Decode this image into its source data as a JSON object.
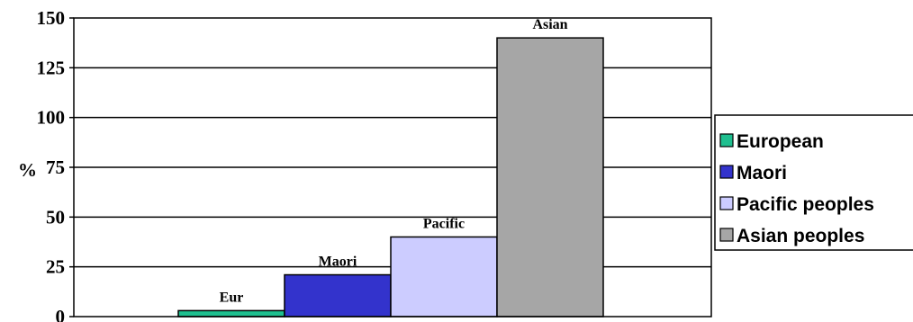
{
  "chart_data": {
    "type": "bar",
    "ylabel": "%",
    "ylim": [
      0,
      150
    ],
    "yticks": [
      0,
      25,
      50,
      75,
      100,
      125,
      150
    ],
    "grid": true,
    "legend_position": "right",
    "series": [
      {
        "name": "European",
        "value": 3,
        "data_label": "Eur",
        "color": "#1fbf8f"
      },
      {
        "name": "Maori",
        "value": 21,
        "data_label": "Maori",
        "color": "#3333cc"
      },
      {
        "name": "Pacific peoples",
        "value": 40,
        "data_label": "Pacific",
        "color": "#ccccff"
      },
      {
        "name": "Asian peoples",
        "value": 140,
        "data_label": "Asian",
        "color": "#a6a6a6"
      }
    ]
  }
}
